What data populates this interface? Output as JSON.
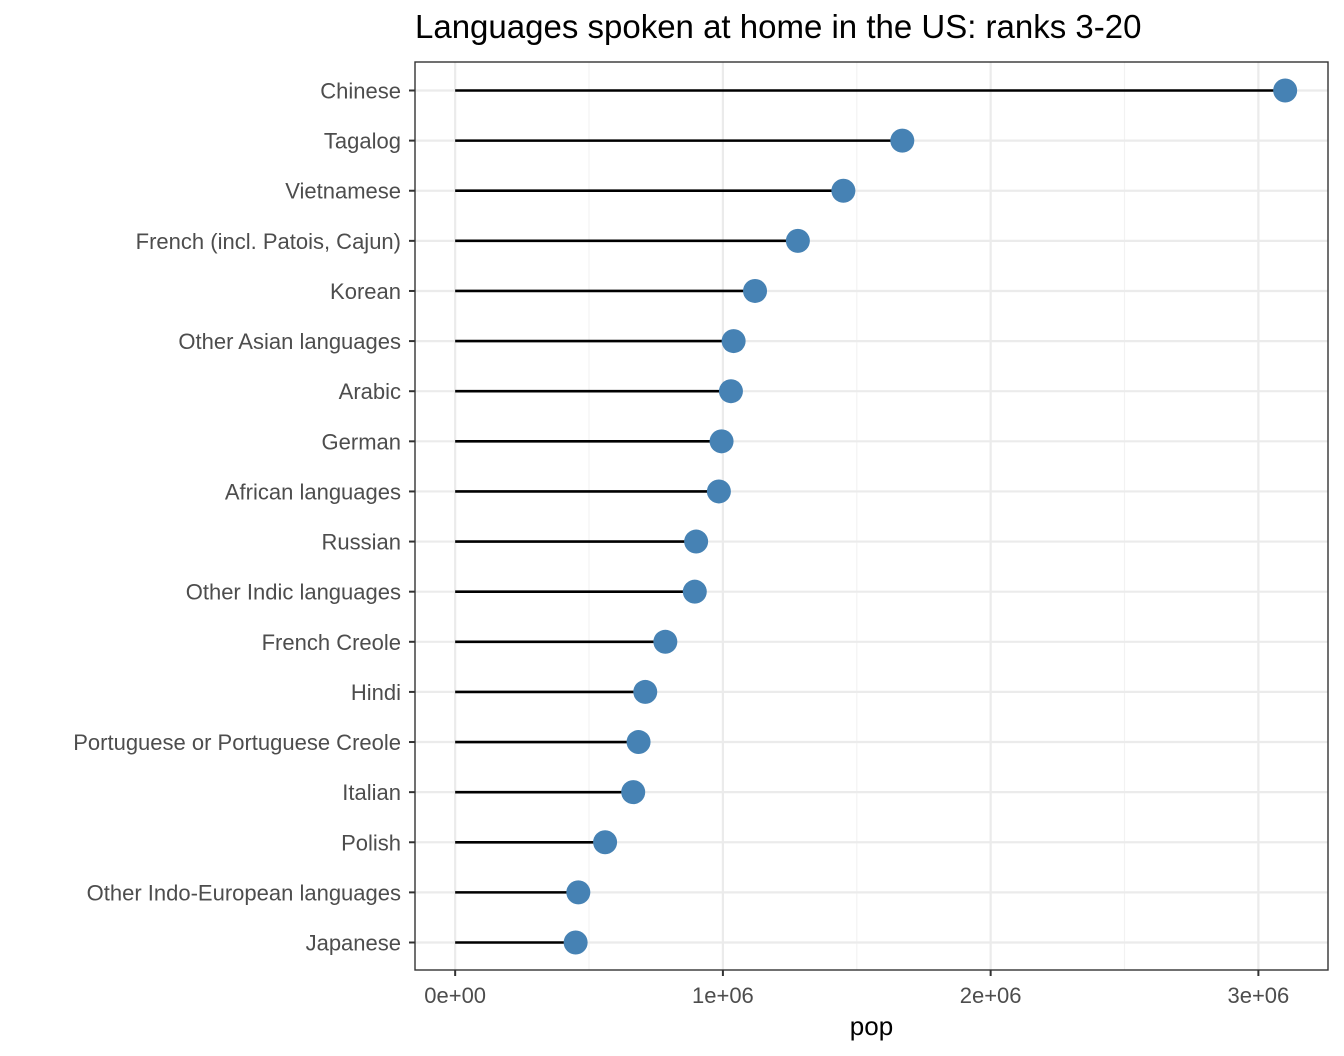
{
  "chart_data": {
    "type": "lollipop",
    "title": "Languages spoken at home in the US: ranks 3-20",
    "xlabel": "pop",
    "ylabel": "",
    "xlim": [
      -150000,
      3260000
    ],
    "x_ticks": [
      0,
      1000000,
      2000000,
      3000000
    ],
    "x_tick_labels": [
      "0e+00",
      "1e+06",
      "2e+06",
      "3e+06"
    ],
    "grid": true,
    "point_color": "#4682b4",
    "stem_color": "#000000",
    "categories": [
      "Chinese",
      "Tagalog",
      "Vietnamese",
      "French (incl. Patois, Cajun)",
      "Korean",
      "Other Asian languages",
      "Arabic",
      "German",
      "African languages",
      "Russian",
      "Other Indic languages",
      "French Creole",
      "Hindi",
      "Portuguese or Portuguese Creole",
      "Italian",
      "Polish",
      "Other Indo-European languages",
      "Japanese"
    ],
    "values": [
      3100000,
      1670000,
      1450000,
      1280000,
      1120000,
      1040000,
      1030000,
      995000,
      985000,
      900000,
      895000,
      785000,
      710000,
      685000,
      665000,
      560000,
      460000,
      450000
    ]
  }
}
